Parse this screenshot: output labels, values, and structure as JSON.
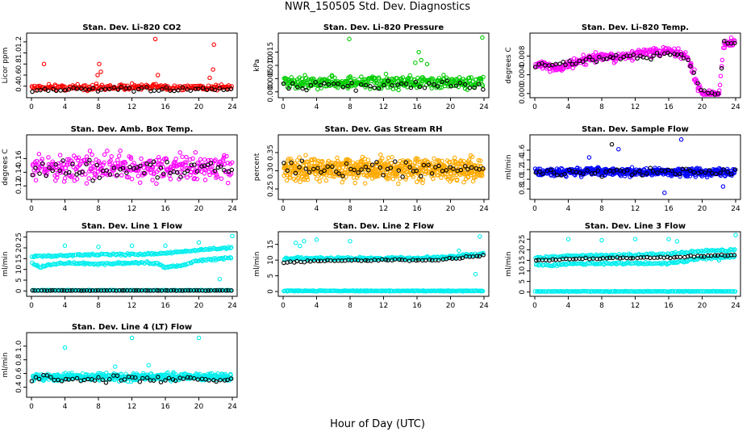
{
  "page": {
    "title": "NWR_150505  Std. Dev. Diagnostics",
    "xlabel": "Hour of Day (UTC)"
  },
  "chart_data": [
    {
      "type": "scatter",
      "title": "Stan. Dev. Li-820 CO2",
      "ylabel": "Licor ppm",
      "xlim": [
        0,
        24
      ],
      "ylim": [
        0.25,
        1.3
      ],
      "xticks": [
        0,
        4,
        8,
        12,
        16,
        20,
        24
      ],
      "yticks": [
        0.4,
        0.6,
        0.8,
        1.0,
        1.2
      ],
      "ytick_labels": [
        "0.4",
        "0.6",
        "0.8",
        "1.0",
        "1.2"
      ],
      "grid": false,
      "series": [
        {
          "color": "#ff0000",
          "mode": "band",
          "base": 0.38,
          "spread": 0.08,
          "n": 240,
          "outliers": [
            [
              1.5,
              0.8
            ],
            [
              8.1,
              0.8
            ],
            [
              8.3,
              0.66
            ],
            [
              14.8,
              1.25
            ],
            [
              15.1,
              0.6
            ],
            [
              21.8,
              1.15
            ],
            [
              21.7,
              0.7
            ],
            [
              21.3,
              0.55
            ],
            [
              7.9,
              0.6
            ]
          ]
        },
        {
          "color": "#000000",
          "mode": "band",
          "base": 0.34,
          "spread": 0.05,
          "n": 50
        }
      ]
    },
    {
      "type": "scatter",
      "title": "Stan. Dev. Li-820 Pressure",
      "ylabel": "kPa",
      "xlim": [
        0,
        24
      ],
      "ylim": [
        -0.001,
        0.021
      ],
      "xticks": [
        0,
        4,
        8,
        12,
        16,
        20,
        24
      ],
      "yticks": [
        0.0,
        0.005,
        0.01,
        0.015
      ],
      "ytick_labels": [
        "0.000",
        "0.005",
        "0.010",
        "0.015"
      ],
      "grid": false,
      "series": [
        {
          "color": "#00cc00",
          "mode": "band",
          "base": 0.0035,
          "spread": 0.0035,
          "n": 360,
          "outliers": [
            [
              7.9,
              0.02
            ],
            [
              16.2,
              0.015
            ],
            [
              16.5,
              0.012
            ],
            [
              15.8,
              0.011
            ],
            [
              23.8,
              0.0205
            ],
            [
              17.2,
              0.0105
            ]
          ]
        },
        {
          "color": "#000000",
          "mode": "band",
          "base": 0.0025,
          "spread": 0.0025,
          "n": 45
        }
      ]
    },
    {
      "type": "scatter",
      "title": "Stan. Dev. Li-820 Temp.",
      "ylabel": "degrees C",
      "xlim": [
        0,
        24
      ],
      "ylim": [
        -0.0002,
        0.0122
      ],
      "xticks": [
        0,
        4,
        8,
        12,
        16,
        20,
        24
      ],
      "yticks": [
        0.0,
        0.004,
        0.008
      ],
      "ytick_labels": [
        "0.000",
        "0.004",
        "0.008"
      ],
      "grid": false,
      "series": [
        {
          "color": "#ff00ff",
          "mode": "trend",
          "points": [
            [
              0,
              0.006
            ],
            [
              3,
              0.0055
            ],
            [
              6,
              0.007
            ],
            [
              8,
              0.008
            ],
            [
              10,
              0.0075
            ],
            [
              12,
              0.0085
            ],
            [
              16,
              0.009
            ],
            [
              18,
              0.008
            ],
            [
              19,
              0.0045
            ],
            [
              19.5,
              0.0015
            ],
            [
              20,
              0.0
            ],
            [
              22,
              0.0
            ],
            [
              22.6,
              0.0105
            ],
            [
              23.8,
              0.011
            ]
          ],
          "spread": 0.0015,
          "n": 320
        },
        {
          "color": "#000000",
          "mode": "trend",
          "points": [
            [
              0,
              0.006
            ],
            [
              6,
              0.007
            ],
            [
              12,
              0.008
            ],
            [
              18,
              0.0082
            ],
            [
              19.5,
              0.002
            ],
            [
              20,
              0.0
            ],
            [
              22,
              0.0
            ],
            [
              22.6,
              0.011
            ],
            [
              23.8,
              0.011
            ]
          ],
          "spread": 0.001,
          "n": 60
        }
      ]
    },
    {
      "type": "scatter",
      "title": "Stan. Dev. Amb. Box Temp.",
      "ylabel": "degrees C",
      "xlim": [
        0,
        24
      ],
      "ylim": [
        0.105,
        0.19
      ],
      "xticks": [
        0,
        4,
        8,
        12,
        16,
        20,
        24
      ],
      "yticks": [
        0.12,
        0.14,
        0.16
      ],
      "ytick_labels": [
        "0.12",
        "0.14",
        "0.16"
      ],
      "grid": false,
      "series": [
        {
          "color": "#ff00ff",
          "mode": "band",
          "base": 0.147,
          "spread": 0.028,
          "n": 330
        },
        {
          "color": "#000000",
          "mode": "band",
          "base": 0.145,
          "spread": 0.02,
          "n": 60
        }
      ]
    },
    {
      "type": "scatter",
      "title": "Stan. Dev. Gas Stream RH",
      "ylabel": "percent",
      "xlim": [
        0,
        24
      ],
      "ylim": [
        0.23,
        0.39
      ],
      "xticks": [
        0,
        4,
        8,
        12,
        16,
        20,
        24
      ],
      "yticks": [
        0.25,
        0.3,
        0.35
      ],
      "ytick_labels": [
        "0.25",
        "0.30",
        "0.35"
      ],
      "grid": false,
      "series": [
        {
          "color": "#ffaa00",
          "mode": "band",
          "base": 0.305,
          "spread": 0.045,
          "n": 650
        },
        {
          "color": "#000000",
          "mode": "band",
          "base": 0.305,
          "spread": 0.03,
          "n": 55
        }
      ]
    },
    {
      "type": "scatter",
      "title": "Stan. Dev. Sample Flow",
      "ylabel": "ml/min",
      "xlim": [
        0,
        24
      ],
      "ylim": [
        0.65,
        1.85
      ],
      "xticks": [
        0,
        4,
        8,
        12,
        16,
        20,
        24
      ],
      "yticks": [
        0.8,
        1.0,
        1.2,
        1.4,
        1.6
      ],
      "ytick_labels": [
        "0.8",
        "1.0",
        "1.2",
        "1.4",
        "1.6"
      ],
      "grid": false,
      "series": [
        {
          "color": "#0000ff",
          "mode": "band",
          "base": 1.15,
          "spread": 0.12,
          "n": 500,
          "outliers": [
            [
              17.5,
              1.82
            ],
            [
              15.5,
              0.72
            ],
            [
              10,
              1.62
            ],
            [
              6.5,
              1.45
            ],
            [
              22.5,
              0.85
            ]
          ]
        },
        {
          "color": "#000000",
          "mode": "band",
          "base": 1.15,
          "spread": 0.1,
          "n": 55,
          "outliers": [
            [
              9.2,
              1.72
            ]
          ]
        }
      ]
    },
    {
      "type": "scatter",
      "title": "Stan. Dev. Line 1 Flow",
      "ylabel": "ml/min",
      "xlim": [
        0,
        24
      ],
      "ylim": [
        -1,
        26
      ],
      "xticks": [
        0,
        4,
        8,
        12,
        16,
        20,
        24
      ],
      "yticks": [
        0,
        5,
        10,
        15,
        20,
        25
      ],
      "ytick_labels": [
        "0",
        "5",
        "10",
        "15",
        "20",
        "25"
      ],
      "grid": false,
      "series": [
        {
          "color": "#00eeee",
          "mode": "trend",
          "points": [
            [
              0,
              16
            ],
            [
              4,
              16.5
            ],
            [
              8,
              17
            ],
            [
              12,
              17
            ],
            [
              16,
              17.5
            ],
            [
              20,
              19
            ],
            [
              24,
              20
            ]
          ],
          "spread": 0.7,
          "n": 160,
          "outliers": [
            [
              4,
              21
            ],
            [
              8,
              20.5
            ],
            [
              12,
              21
            ],
            [
              16,
              21
            ],
            [
              24,
              25.5
            ],
            [
              22.5,
              5.5
            ],
            [
              20,
              22.5
            ]
          ]
        },
        {
          "color": "#00eeee",
          "mode": "trend",
          "points": [
            [
              0,
              13
            ],
            [
              1,
              11
            ],
            [
              2,
              12
            ],
            [
              4,
              13
            ],
            [
              8,
              12.5
            ],
            [
              12,
              13
            ],
            [
              15,
              13
            ],
            [
              16,
              11
            ],
            [
              18,
              12
            ],
            [
              20,
              14
            ],
            [
              24,
              15.5
            ]
          ],
          "spread": 0.7,
          "n": 160
        },
        {
          "color": "#00eeee",
          "mode": "band",
          "base": 0.3,
          "spread": 0.2,
          "n": 200
        },
        {
          "color": "#000000",
          "mode": "band",
          "base": 0.2,
          "spread": 0.1,
          "n": 70
        }
      ]
    },
    {
      "type": "scatter",
      "title": "Stan. Dev. Line 2 Flow",
      "ylabel": "ml/min",
      "xlim": [
        0,
        24
      ],
      "ylim": [
        -0.5,
        18
      ],
      "xticks": [
        0,
        4,
        8,
        12,
        16,
        20,
        24
      ],
      "yticks": [
        0,
        5,
        10,
        15
      ],
      "ytick_labels": [
        "0",
        "5",
        "10",
        "15"
      ],
      "grid": false,
      "series": [
        {
          "color": "#00eeee",
          "mode": "trend",
          "points": [
            [
              0,
              10.5
            ],
            [
              8,
              10.5
            ],
            [
              16,
              10.5
            ],
            [
              20,
              11
            ],
            [
              24,
              12
            ]
          ],
          "spread": 0.6,
          "n": 260,
          "outliers": [
            [
              1.5,
              15.5
            ],
            [
              2,
              14.5
            ],
            [
              2.5,
              16
            ],
            [
              4,
              16.5
            ],
            [
              8,
              16
            ],
            [
              23.5,
              17.5
            ],
            [
              23,
              5.5
            ],
            [
              21,
              13
            ]
          ]
        },
        {
          "color": "#00eeee",
          "mode": "band",
          "base": 0.2,
          "spread": 0.2,
          "n": 220
        },
        {
          "color": "#000000",
          "mode": "trend",
          "points": [
            [
              0,
              9.2
            ],
            [
              4,
              9.8
            ],
            [
              12,
              10
            ],
            [
              18,
              10
            ],
            [
              20,
              10.5
            ],
            [
              24,
              11.5
            ]
          ],
          "spread": 0.4,
          "n": 60
        }
      ]
    },
    {
      "type": "scatter",
      "title": "Stan. Dev. Line 3 Flow",
      "ylabel": "ml/min",
      "xlim": [
        0,
        24
      ],
      "ylim": [
        -0.5,
        27
      ],
      "xticks": [
        0,
        4,
        8,
        12,
        16,
        20,
        24
      ],
      "yticks": [
        0,
        5,
        10,
        15,
        20,
        25
      ],
      "ytick_labels": [
        "0",
        "5",
        "10",
        "15",
        "20",
        "25"
      ],
      "grid": false,
      "series": [
        {
          "color": "#00eeee",
          "mode": "trend",
          "points": [
            [
              0,
              16
            ],
            [
              4,
              17
            ],
            [
              12,
              17.5
            ],
            [
              16,
              18
            ],
            [
              20,
              19.5
            ],
            [
              24,
              20
            ]
          ],
          "spread": 0.8,
          "n": 160,
          "outliers": [
            [
              4,
              25
            ],
            [
              8,
              24.5
            ],
            [
              12,
              25
            ],
            [
              16,
              25
            ],
            [
              17,
              24
            ],
            [
              24,
              27
            ],
            [
              22,
              15
            ]
          ]
        },
        {
          "color": "#00eeee",
          "mode": "trend",
          "points": [
            [
              0,
              13
            ],
            [
              2,
              12.5
            ],
            [
              4,
              13.5
            ],
            [
              12,
              13.5
            ],
            [
              16,
              13.5
            ],
            [
              20,
              16
            ],
            [
              24,
              17
            ]
          ],
          "spread": 0.8,
          "n": 160
        },
        {
          "color": "#00eeee",
          "mode": "band",
          "base": 0.3,
          "spread": 0.2,
          "n": 200
        },
        {
          "color": "#000000",
          "mode": "trend",
          "points": [
            [
              0,
              15
            ],
            [
              8,
              16
            ],
            [
              16,
              16.5
            ],
            [
              24,
              17.5
            ]
          ],
          "spread": 0.5,
          "n": 60
        }
      ]
    },
    {
      "type": "scatter",
      "title": "Stan. Dev. Line 4 (LT) Flow",
      "ylabel": "ml/min",
      "xlim": [
        0,
        24
      ],
      "ylim": [
        0.3,
        1.15
      ],
      "xticks": [
        0,
        4,
        8,
        12,
        16,
        20,
        24
      ],
      "yticks": [
        0.4,
        0.6,
        0.8,
        1.0
      ],
      "ytick_labels": [
        "0.4",
        "0.6",
        "0.8",
        "1.0"
      ],
      "grid": false,
      "series": [
        {
          "color": "#00eeee",
          "mode": "band",
          "base": 0.55,
          "spread": 0.08,
          "n": 420,
          "outliers": [
            [
              4,
              0.98
            ],
            [
              12,
              1.12
            ],
            [
              20,
              1.12
            ],
            [
              10,
              0.7
            ],
            [
              14,
              0.72
            ]
          ]
        },
        {
          "color": "#000000",
          "mode": "band",
          "base": 0.52,
          "spread": 0.07,
          "n": 55
        }
      ]
    }
  ]
}
